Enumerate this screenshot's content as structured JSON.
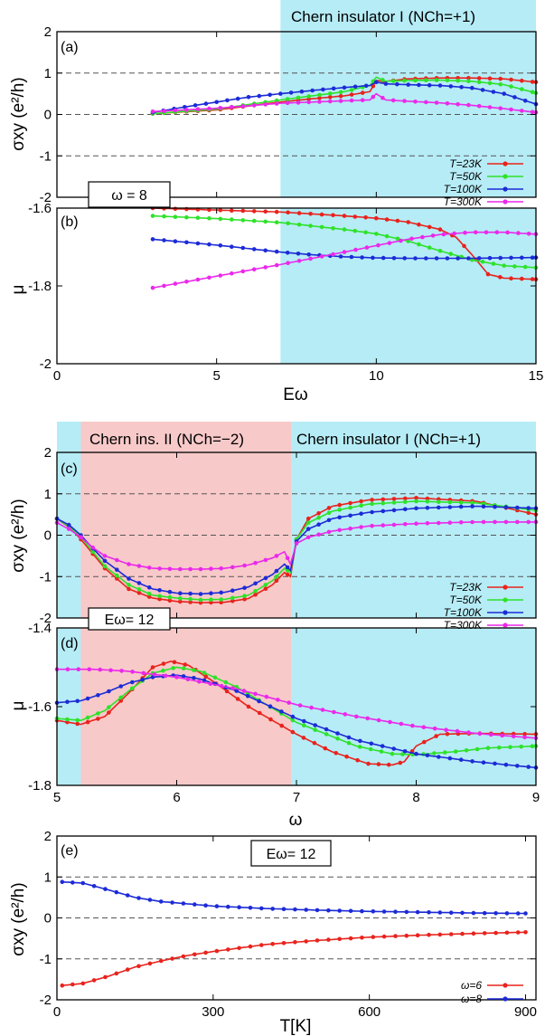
{
  "colors": {
    "T23": "#e8231d",
    "T50": "#2ee22a",
    "T100": "#1c2bd6",
    "T300": "#ea29ea",
    "cyan": "#b6ecf6",
    "pink": "#f8c9c9",
    "grid": "#555555"
  },
  "panel_a": {
    "label": "(a)",
    "ylabel": "σxy (e²/h)",
    "region": "Chern insulator I (NCh=+1)",
    "omega_box": "ω = 8"
  },
  "panel_b": {
    "label": "(b)",
    "ylabel": "μ",
    "xlabel": "Eω"
  },
  "panel_c": {
    "label": "(c)",
    "ylabel": "σxy (e²/h)",
    "region_pink": "Chern ins. II (NCh=−2)",
    "region_cyan": "Chern insulator I (NCh=+1)"
  },
  "panel_d": {
    "label": "(d)",
    "ylabel": "μ",
    "xlabel": "ω",
    "e_box": "Eω= 12"
  },
  "panel_e": {
    "label": "(e)",
    "ylabel": "σxy (e²/h)",
    "xlabel": "T[K]",
    "e_box": "Eω= 12"
  },
  "legend_T": [
    "T=23K",
    "T=50K",
    "T=100K",
    "T=300K"
  ],
  "legend_w": [
    "ω=6",
    "ω=8"
  ],
  "chart_data": [
    {
      "type": "line",
      "title": "(a)",
      "xlabel": "Eω",
      "ylabel": "σxy (e²/h)",
      "xlim": [
        0,
        15
      ],
      "ylim": [
        -2,
        2
      ],
      "yticks": [
        -2,
        -1,
        0,
        1,
        2
      ],
      "xticks": [
        0,
        5,
        10,
        15
      ],
      "shaded": [
        {
          "from": 7,
          "to": 15,
          "color": "cyan",
          "label": "Chern insulator I (NCh=+1)"
        }
      ],
      "series": [
        {
          "name": "T=23K",
          "color": "T23",
          "x": [
            3,
            5,
            7,
            8,
            9,
            9.8,
            10,
            10.3,
            11,
            12,
            13,
            14,
            15
          ],
          "y": [
            0.02,
            0.11,
            0.3,
            0.38,
            0.45,
            0.55,
            0.82,
            0.8,
            0.86,
            0.88,
            0.88,
            0.86,
            0.78
          ]
        },
        {
          "name": "T=50K",
          "color": "T50",
          "x": [
            3,
            5,
            7,
            8,
            9,
            9.8,
            10,
            10.3,
            11,
            12,
            13,
            14,
            15
          ],
          "y": [
            0.02,
            0.13,
            0.35,
            0.45,
            0.55,
            0.7,
            0.9,
            0.8,
            0.82,
            0.83,
            0.8,
            0.72,
            0.52
          ]
        },
        {
          "name": "T=100K",
          "color": "T100",
          "x": [
            3,
            4,
            5,
            6,
            7,
            8,
            9,
            9.8,
            10,
            10.3,
            11,
            12,
            13,
            14,
            15
          ],
          "y": [
            0.05,
            0.18,
            0.3,
            0.42,
            0.5,
            0.58,
            0.65,
            0.7,
            0.78,
            0.74,
            0.72,
            0.7,
            0.64,
            0.5,
            0.25
          ]
        },
        {
          "name": "T=300K",
          "color": "T300",
          "x": [
            3,
            5,
            7,
            8,
            9,
            9.8,
            10,
            10.3,
            11,
            12,
            13,
            14,
            15
          ],
          "y": [
            0.07,
            0.15,
            0.27,
            0.3,
            0.33,
            0.35,
            0.5,
            0.35,
            0.32,
            0.28,
            0.22,
            0.14,
            0.05
          ]
        }
      ]
    },
    {
      "type": "line",
      "title": "(b)",
      "xlabel": "Eω",
      "ylabel": "μ",
      "xlim": [
        0,
        15
      ],
      "ylim": [
        -2.0,
        -1.6
      ],
      "yticks": [
        -2.0,
        -1.8,
        -1.6
      ],
      "xticks": [
        0,
        5,
        10,
        15
      ],
      "shaded": [
        {
          "from": 7,
          "to": 15,
          "color": "cyan"
        }
      ],
      "series": [
        {
          "name": "T=23K",
          "color": "T23",
          "x": [
            3,
            5,
            7,
            9,
            10,
            11,
            12,
            12.5,
            13,
            13.5,
            14,
            15
          ],
          "y": [
            -1.6,
            -1.605,
            -1.61,
            -1.62,
            -1.626,
            -1.636,
            -1.655,
            -1.675,
            -1.72,
            -1.77,
            -1.78,
            -1.783
          ]
        },
        {
          "name": "T=50K",
          "color": "T50",
          "x": [
            3,
            5,
            7,
            9,
            10,
            11,
            12,
            13,
            14,
            15
          ],
          "y": [
            -1.62,
            -1.627,
            -1.637,
            -1.655,
            -1.666,
            -1.685,
            -1.71,
            -1.733,
            -1.748,
            -1.753
          ]
        },
        {
          "name": "T=100K",
          "color": "T100",
          "x": [
            3,
            5,
            7,
            8,
            9,
            10,
            11,
            12,
            13,
            14,
            15
          ],
          "y": [
            -1.68,
            -1.695,
            -1.713,
            -1.72,
            -1.725,
            -1.728,
            -1.729,
            -1.729,
            -1.729,
            -1.728,
            -1.727
          ]
        },
        {
          "name": "T=300K",
          "color": "T300",
          "x": [
            3,
            5,
            7,
            9,
            11,
            12,
            13,
            14,
            15
          ],
          "y": [
            -1.805,
            -1.775,
            -1.745,
            -1.713,
            -1.68,
            -1.668,
            -1.662,
            -1.662,
            -1.667
          ]
        }
      ]
    },
    {
      "type": "line",
      "title": "(c)",
      "xlabel": "ω",
      "ylabel": "σxy (e²/h)",
      "xlim": [
        5,
        9
      ],
      "ylim": [
        -2,
        2
      ],
      "yticks": [
        -2,
        -1,
        0,
        1,
        2
      ],
      "xticks": [
        5,
        6,
        7,
        8,
        9
      ],
      "shaded": [
        {
          "from": 5,
          "to": 5.2,
          "color": "cyan"
        },
        {
          "from": 5.2,
          "to": 6.96,
          "color": "pink",
          "label": "Chern ins. II (NCh=−2)"
        },
        {
          "from": 6.96,
          "to": 9,
          "color": "cyan",
          "label": "Chern insulator I (NCh=+1)"
        }
      ],
      "series": [
        {
          "name": "T=23K",
          "color": "T23",
          "x": [
            5,
            5.1,
            5.2,
            5.3,
            5.4,
            5.6,
            5.8,
            6,
            6.2,
            6.4,
            6.6,
            6.8,
            6.9,
            6.95,
            7,
            7.1,
            7.3,
            7.6,
            8,
            8.5,
            9
          ],
          "y": [
            0.4,
            0.2,
            -0.1,
            -0.45,
            -0.8,
            -1.3,
            -1.52,
            -1.6,
            -1.63,
            -1.62,
            -1.53,
            -1.2,
            -0.9,
            -1.0,
            -0.1,
            0.4,
            0.7,
            0.85,
            0.9,
            0.82,
            0.5
          ]
        },
        {
          "name": "T=50K",
          "color": "T50",
          "x": [
            5,
            5.1,
            5.2,
            5.3,
            5.4,
            5.6,
            5.8,
            6,
            6.2,
            6.4,
            6.6,
            6.8,
            6.9,
            6.95,
            7,
            7.1,
            7.3,
            7.6,
            8,
            8.5,
            9
          ],
          "y": [
            0.4,
            0.22,
            -0.05,
            -0.4,
            -0.75,
            -1.2,
            -1.45,
            -1.52,
            -1.56,
            -1.55,
            -1.45,
            -1.1,
            -0.8,
            -0.9,
            -0.1,
            0.3,
            0.58,
            0.75,
            0.82,
            0.78,
            0.6
          ]
        },
        {
          "name": "T=100K",
          "color": "T100",
          "x": [
            5,
            5.1,
            5.2,
            5.3,
            5.4,
            5.6,
            5.8,
            6,
            6.2,
            6.4,
            6.6,
            6.8,
            6.9,
            6.95,
            7,
            7.1,
            7.3,
            7.6,
            8,
            8.5,
            9
          ],
          "y": [
            0.4,
            0.25,
            0.0,
            -0.32,
            -0.62,
            -1.05,
            -1.3,
            -1.4,
            -1.42,
            -1.38,
            -1.25,
            -0.95,
            -0.7,
            -0.85,
            -0.15,
            0.15,
            0.4,
            0.55,
            0.65,
            0.7,
            0.65
          ]
        },
        {
          "name": "T=300K",
          "color": "T300",
          "x": [
            5,
            5.1,
            5.2,
            5.3,
            5.4,
            5.6,
            5.8,
            6,
            6.2,
            6.4,
            6.6,
            6.8,
            6.9,
            6.95,
            7,
            7.1,
            7.3,
            7.6,
            8,
            8.5,
            9
          ],
          "y": [
            0.3,
            0.15,
            -0.05,
            -0.3,
            -0.5,
            -0.7,
            -0.8,
            -0.82,
            -0.82,
            -0.8,
            -0.72,
            -0.55,
            -0.4,
            -0.7,
            -0.2,
            -0.05,
            0.1,
            0.22,
            0.28,
            0.32,
            0.32
          ]
        }
      ]
    },
    {
      "type": "line",
      "title": "(d)",
      "xlabel": "ω",
      "ylabel": "μ",
      "xlim": [
        5,
        9
      ],
      "ylim": [
        -1.8,
        -1.4
      ],
      "yticks": [
        -1.8,
        -1.6,
        -1.4
      ],
      "xticks": [
        5,
        6,
        7,
        8,
        9
      ],
      "shaded": [
        {
          "from": 5,
          "to": 5.2,
          "color": "cyan"
        },
        {
          "from": 5.2,
          "to": 6.96,
          "color": "pink"
        },
        {
          "from": 6.96,
          "to": 9,
          "color": "cyan"
        }
      ],
      "series": [
        {
          "name": "T=23K",
          "color": "T23",
          "x": [
            5,
            5.2,
            5.4,
            5.6,
            5.8,
            5.95,
            6.1,
            6.3,
            6.6,
            7,
            7.3,
            7.6,
            7.8,
            7.9,
            8,
            8.2,
            8.5,
            9
          ],
          "y": [
            -1.635,
            -1.645,
            -1.625,
            -1.565,
            -1.5,
            -1.485,
            -1.495,
            -1.535,
            -1.6,
            -1.67,
            -1.715,
            -1.745,
            -1.748,
            -1.74,
            -1.7,
            -1.67,
            -1.668,
            -1.67
          ]
        },
        {
          "name": "T=50K",
          "color": "T50",
          "x": [
            5,
            5.2,
            5.4,
            5.6,
            5.8,
            6,
            6.2,
            6.5,
            7,
            7.5,
            7.8,
            8,
            8.3,
            8.6,
            9
          ],
          "y": [
            -1.63,
            -1.635,
            -1.61,
            -1.56,
            -1.515,
            -1.5,
            -1.51,
            -1.55,
            -1.64,
            -1.7,
            -1.72,
            -1.722,
            -1.715,
            -1.705,
            -1.7
          ]
        },
        {
          "name": "T=100K",
          "color": "T100",
          "x": [
            5,
            5.2,
            5.4,
            5.6,
            5.8,
            6,
            6.2,
            6.5,
            7,
            7.5,
            8,
            8.5,
            9
          ],
          "y": [
            -1.59,
            -1.585,
            -1.565,
            -1.54,
            -1.525,
            -1.52,
            -1.53,
            -1.56,
            -1.63,
            -1.685,
            -1.72,
            -1.74,
            -1.755
          ]
        },
        {
          "name": "T=300K",
          "color": "T300",
          "x": [
            5,
            5.3,
            5.6,
            6,
            6.5,
            7,
            7.5,
            8,
            8.5,
            9
          ],
          "y": [
            -1.505,
            -1.505,
            -1.51,
            -1.525,
            -1.555,
            -1.595,
            -1.625,
            -1.65,
            -1.668,
            -1.68
          ]
        }
      ]
    },
    {
      "type": "line",
      "title": "(e)",
      "xlabel": "T[K]",
      "ylabel": "σxy (e²/h)",
      "xlim": [
        0,
        920
      ],
      "ylim": [
        -2,
        2
      ],
      "yticks": [
        -2,
        -1,
        0,
        1,
        2
      ],
      "xticks": [
        0,
        300,
        600,
        900
      ],
      "series": [
        {
          "name": "ω=6",
          "color": "T23",
          "x": [
            10,
            50,
            100,
            150,
            200,
            250,
            300,
            400,
            500,
            600,
            700,
            800,
            900
          ],
          "y": [
            -1.65,
            -1.6,
            -1.42,
            -1.2,
            -1.05,
            -0.92,
            -0.82,
            -0.65,
            -0.55,
            -0.47,
            -0.42,
            -0.38,
            -0.35
          ]
        },
        {
          "name": "ω=8",
          "color": "T100",
          "x": [
            10,
            50,
            100,
            150,
            200,
            300,
            400,
            500,
            600,
            700,
            800,
            900
          ],
          "y": [
            0.88,
            0.85,
            0.68,
            0.5,
            0.4,
            0.29,
            0.23,
            0.19,
            0.16,
            0.14,
            0.12,
            0.11
          ]
        }
      ]
    }
  ]
}
